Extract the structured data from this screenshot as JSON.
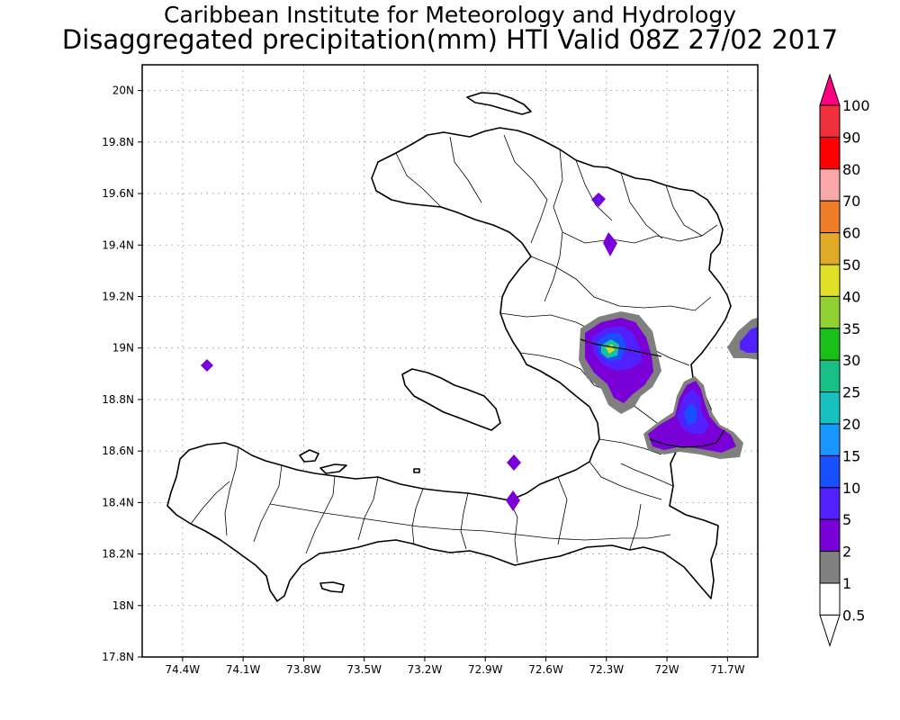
{
  "header": {
    "title": "Caribbean Institute for Meteorology and Hydrology",
    "subtitle": "Disaggregated precipitation(mm) HTI Valid 08Z 27/02 2017"
  },
  "map": {
    "region": "Haiti",
    "lon_range": [
      -74.6,
      -71.55
    ],
    "lat_range": [
      17.8,
      20.1
    ],
    "lat_ticks": [
      "20N",
      "19.8N",
      "19.6N",
      "19.4N",
      "19.2N",
      "19N",
      "18.8N",
      "18.6N",
      "18.4N",
      "18.2N",
      "18N",
      "17.8N"
    ],
    "lon_ticks": [
      "74.4W",
      "74.1W",
      "73.8W",
      "73.5W",
      "73.2W",
      "72.9W",
      "72.6W",
      "72.3W",
      "72W",
      "71.7W"
    ],
    "grid": true,
    "grid_style": "dotted"
  },
  "legend": {
    "unit": "mm",
    "labels": [
      "100",
      "90",
      "80",
      "70",
      "60",
      "50",
      "40",
      "35",
      "30",
      "25",
      "20",
      "15",
      "10",
      "5",
      "2",
      "1",
      "0.5"
    ],
    "colors": [
      "#ff0080",
      "#f0303c",
      "#ff0000",
      "#f8a8a8",
      "#ef7d28",
      "#e0aa28",
      "#e0e028",
      "#90d030",
      "#18c018",
      "#18c088",
      "#18c0c0",
      "#1898ff",
      "#1850ff",
      "#5020ff",
      "#7a00d8",
      "#808080",
      "#ffffff"
    ]
  },
  "colors": {
    "gray_fill": "#7f7f7f",
    "purple_dark": "#7a00d8",
    "purple_mid": "#5020ff",
    "blue": "#1850ff",
    "teal": "#18c0a0",
    "lime": "#c0e030"
  }
}
